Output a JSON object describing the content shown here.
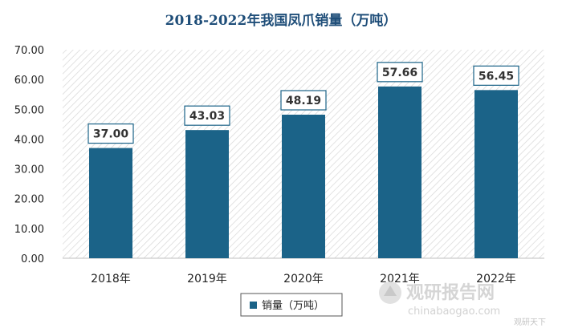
{
  "chart_data": {
    "type": "bar",
    "title": "2018-2022年我国凤爪销量（万吨）",
    "categories": [
      "2018年",
      "2019年",
      "2020年",
      "2021年",
      "2022年"
    ],
    "series": [
      {
        "name": "销量（万吨）",
        "values": [
          37.0,
          43.03,
          48.19,
          57.66,
          56.45
        ]
      }
    ],
    "data_labels": [
      "37.00",
      "43.03",
      "48.19",
      "57.66",
      "56.45"
    ],
    "y_ticks": [
      "0.00",
      "10.00",
      "20.00",
      "30.00",
      "40.00",
      "50.00",
      "60.00",
      "70.00"
    ],
    "ylim": [
      0,
      70
    ],
    "xlabel": "",
    "ylabel": "",
    "legend_position": "bottom",
    "colors": {
      "bar": "#1b6388",
      "title": "#1f4e79",
      "label_border": "#1b6388",
      "hatch": "#d4d4d4"
    }
  },
  "watermark": {
    "logo_text": "观研报告网",
    "url_text": "chinabaogao.com",
    "credit_text": "观研天下"
  }
}
